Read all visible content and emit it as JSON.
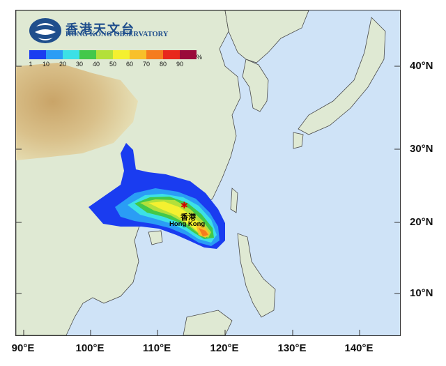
{
  "logo": {
    "name_zh": "香港天文台",
    "name_en": "HONG KONG OBSERVATORY",
    "icon": "observatory-logo-icon"
  },
  "legend": {
    "ticks": [
      "1",
      "10",
      "20",
      "30",
      "40",
      "50",
      "60",
      "70",
      "80",
      "90"
    ],
    "unit": "%",
    "colors": [
      "#1a3cf0",
      "#2a9df5",
      "#3ce0e6",
      "#43c84a",
      "#b3e03a",
      "#f4f030",
      "#f8c02a",
      "#f57c1e",
      "#e8281c",
      "#9a0a3a"
    ]
  },
  "axes": {
    "lat_labels": [
      "40°N",
      "30°N",
      "20°N",
      "10°N"
    ],
    "lon_labels": [
      "90°E",
      "100°E",
      "110°E",
      "120°E",
      "130°E",
      "140°E"
    ]
  },
  "location": {
    "name_zh": "香港",
    "name_en": "Hong Kong",
    "marker_icon": "star-marker-icon"
  },
  "colors": {
    "sea": "#cfe3f7",
    "land_low": "#dfe9d3",
    "land_high": "#d7b27a"
  }
}
